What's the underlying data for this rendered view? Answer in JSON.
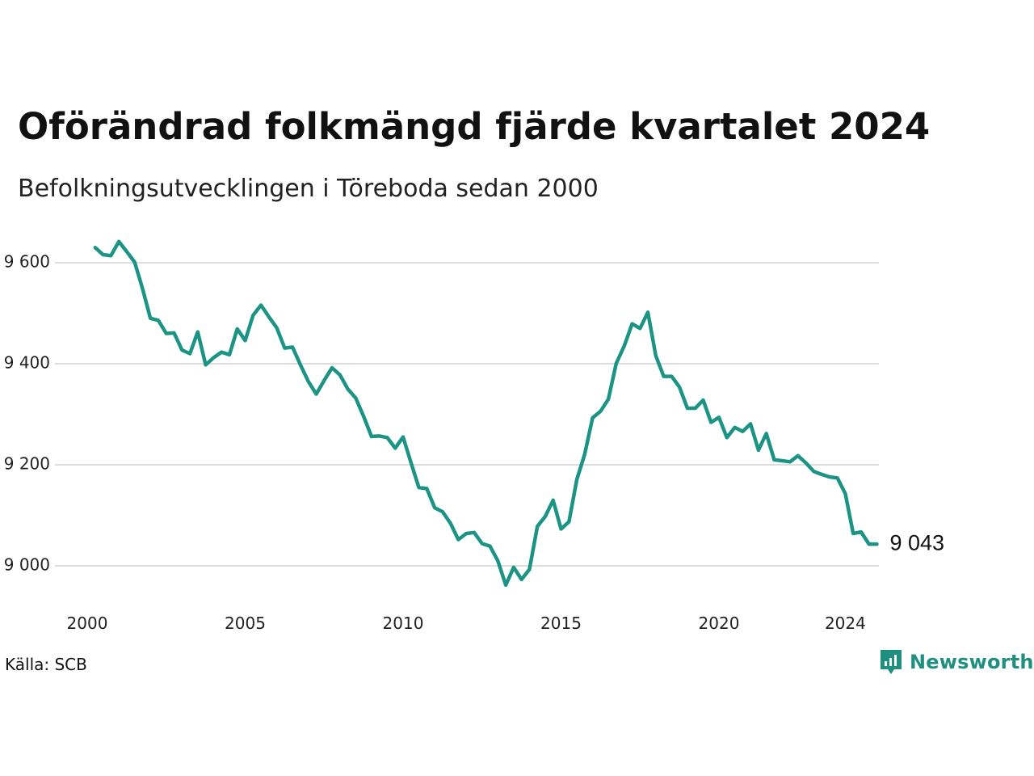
{
  "title": "Oförändrad folkmängd fjärde kvartalet 2024",
  "subtitle": "Befolkningsutvecklingen i Töreboda sedan 2000",
  "source": "Källa: SCB",
  "brand": {
    "name": "Newsworthy",
    "icon": "newsworthy-logo-icon",
    "color": "#1f8f7f"
  },
  "chart_data": {
    "type": "line",
    "title": "Oförändrad folkmängd fjärde kvartalet 2024",
    "subtitle": "Befolkningsutvecklingen i Töreboda sedan 2000",
    "xlabel": "",
    "ylabel": "",
    "x_ticks": [
      "2000",
      "2005",
      "2010",
      "2015",
      "2020",
      "2024"
    ],
    "y_ticks": [
      "9 000",
      "9 200",
      "9 400",
      "9 600"
    ],
    "ylim": [
      8930,
      9660
    ],
    "xlim": [
      2000.0,
      2025.0
    ],
    "grid": "horizontal",
    "line_color": "#1b9485",
    "end_label": "9 043",
    "series": [
      {
        "x": [
          2000.25,
          2000.5,
          2000.75,
          2001.0,
          2001.25,
          2001.5,
          2001.75,
          2002.0,
          2002.25,
          2002.5,
          2002.75,
          2003.0,
          2003.25,
          2003.5,
          2003.75,
          2004.0,
          2004.25,
          2004.5,
          2004.75,
          2005.0,
          2005.25,
          2005.5,
          2005.75,
          2006.0,
          2006.25,
          2006.5,
          2006.75,
          2007.0,
          2007.25,
          2007.5,
          2007.75,
          2008.0,
          2008.25,
          2008.5,
          2008.75,
          2009.0,
          2009.25,
          2009.5,
          2009.75,
          2010.0,
          2010.25,
          2010.5,
          2010.75,
          2011.0,
          2011.25,
          2011.5,
          2011.75,
          2012.0,
          2012.25,
          2012.5,
          2012.75,
          2013.0,
          2013.25,
          2013.5,
          2013.75,
          2014.0,
          2014.25,
          2014.5,
          2014.75,
          2015.0,
          2015.25,
          2015.5,
          2015.75,
          2016.0,
          2016.25,
          2016.5,
          2016.75,
          2017.0,
          2017.25,
          2017.5,
          2017.75,
          2018.0,
          2018.25,
          2018.5,
          2018.75,
          2019.0,
          2019.25,
          2019.5,
          2019.75,
          2020.0,
          2020.25,
          2020.5,
          2020.75,
          2021.0,
          2021.25,
          2021.5,
          2021.75,
          2022.0,
          2022.25,
          2022.5,
          2022.75,
          2023.0,
          2023.25,
          2023.5,
          2023.75,
          2024.0,
          2024.25,
          2024.5,
          2024.75,
          2025.0
        ],
        "values": [
          9630,
          9616,
          9614,
          9642,
          9622,
          9601,
          9549,
          9490,
          9486,
          9460,
          9461,
          9427,
          9420,
          9463,
          9398,
          9412,
          9423,
          9418,
          9469,
          9446,
          9496,
          9516,
          9493,
          9471,
          9431,
          9433,
          9398,
          9365,
          9340,
          9367,
          9392,
          9378,
          9350,
          9332,
          9296,
          9256,
          9257,
          9254,
          9233,
          9255,
          9204,
          9155,
          9153,
          9115,
          9107,
          9084,
          9052,
          9064,
          9066,
          9044,
          9039,
          9010,
          8962,
          8997,
          8973,
          8993,
          9078,
          9098,
          9130,
          9073,
          9087,
          9171,
          9221,
          9293,
          9306,
          9330,
          9401,
          9435,
          9479,
          9470,
          9502,
          9416,
          9375,
          9375,
          9354,
          9312,
          9312,
          9328,
          9284,
          9294,
          9254,
          9274,
          9266,
          9281,
          9229,
          9262,
          9210,
          9208,
          9206,
          9218,
          9204,
          9187,
          9181,
          9176,
          9174,
          9143,
          9064,
          9067,
          9043,
          9043
        ]
      }
    ]
  }
}
